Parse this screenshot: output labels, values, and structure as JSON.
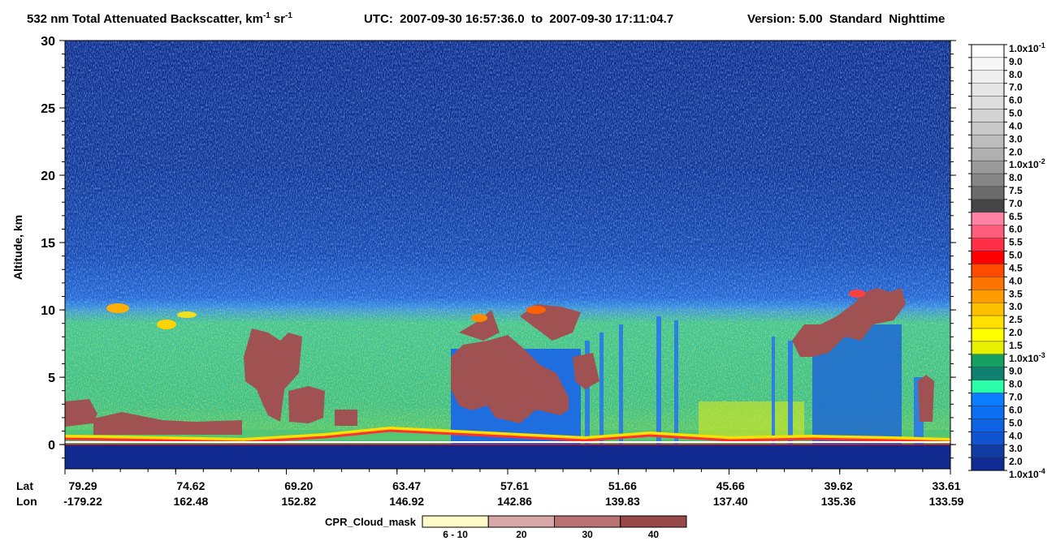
{
  "chart_data": {
    "type": "curtain",
    "title": {
      "text": "532 nm Total Attenuated Backscatter, km",
      "sup1": "-1",
      "text2": "sr",
      "sup2": "-1"
    },
    "time_range": "UTC:  2007-09-30 16:57:36.0  to  2007-09-30 17:11:04.7",
    "version": "Version: 5.00  Standard  Nighttime",
    "ylabel": "Altitude, km",
    "ylim": [
      -1.8,
      30
    ],
    "yticks": [
      0,
      5,
      10,
      15,
      20,
      25,
      30
    ],
    "x_row_names": [
      "Lat",
      "Lon"
    ],
    "lat": [
      "79.29",
      "74.62",
      "69.20",
      "63.47",
      "57.61",
      "51.66",
      "45.66",
      "39.62",
      "33.61"
    ],
    "lon": [
      "-179.22",
      "162.48",
      "152.82",
      "146.92",
      "142.86",
      "139.83",
      "137.40",
      "135.36",
      "133.59"
    ],
    "colorbar": {
      "labels": [
        {
          "text": "1.0x10",
          "sup": "-1"
        },
        "9.0",
        "8.0",
        "7.0",
        "6.0",
        "5.0",
        "4.0",
        "3.0",
        "2.0",
        {
          "text": "1.0x10",
          "sup": "-2"
        },
        "8.0",
        "7.5",
        "7.0",
        "6.5",
        "6.0",
        "5.5",
        "5.0",
        "4.5",
        "4.0",
        "3.5",
        "3.0",
        "2.5",
        "2.0",
        "1.5",
        {
          "text": "1.0x10",
          "sup": "-3"
        },
        "9.0",
        "8.0",
        "7.0",
        "6.0",
        "5.0",
        "4.0",
        "3.0",
        "2.0",
        {
          "text": "1.0x10",
          "sup": "-4"
        }
      ],
      "colors": [
        "#ffffff",
        "#f7f7f7",
        "#efefef",
        "#e6e6e6",
        "#dddddd",
        "#d3d3d3",
        "#c9c9c9",
        "#bdbdbd",
        "#b0b0b0",
        "#9a9a9a",
        "#858585",
        "#6c6c6c",
        "#454545",
        "#ff82a4",
        "#ff5c7c",
        "#ff2e46",
        "#ff0000",
        "#ff4a00",
        "#ff7400",
        "#ff9c00",
        "#ffc000",
        "#ffe000",
        "#ffff00",
        "#e6f000",
        "#16a060",
        "#108070",
        "#28ffa8",
        "#0a7cff",
        "#0c6ef2",
        "#0e62e4",
        "#1054d4",
        "#103ca4",
        "#102c94"
      ]
    },
    "cloud_mask": {
      "title": "CPR_Cloud_mask",
      "labels": [
        "6 - 10",
        "20",
        "30",
        "40"
      ],
      "colors": [
        "#fffac8",
        "#d8a8a8",
        "#b87272",
        "#984a4a"
      ]
    }
  }
}
